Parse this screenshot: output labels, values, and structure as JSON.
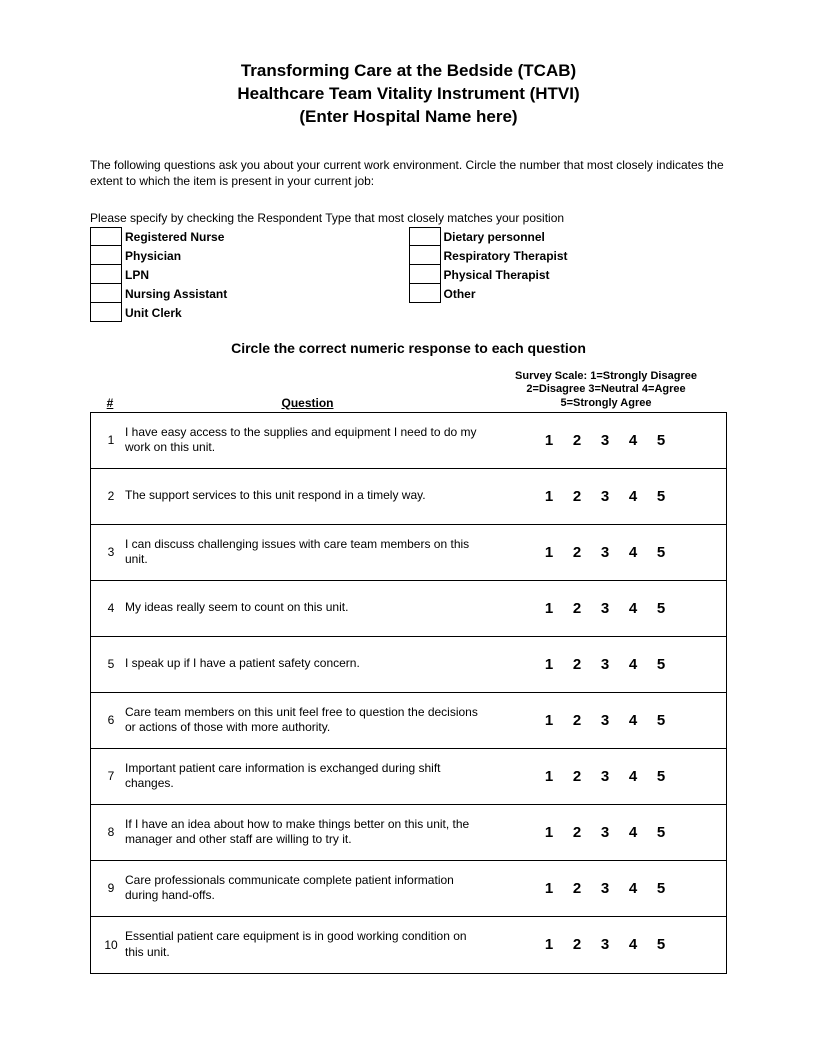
{
  "header": {
    "line1": "Transforming Care at the Bedside (TCAB)",
    "line2": "Healthcare Team Vitality Instrument (HTVI)",
    "line3": "(Enter Hospital Name here)"
  },
  "intro": "The following questions ask you about your current work environment.  Circle the number that most closely indicates the extent to which the item is present in your current job:",
  "respondent_instruction": "Please specify by checking the Respondent Type that most closely matches your position",
  "respondent_types_col1": [
    "Registered Nurse",
    "Physician",
    "LPN",
    "Nursing Assistant",
    "Unit Clerk"
  ],
  "respondent_types_col2": [
    "Dietary personnel",
    "Respiratory Therapist",
    "Physical Therapist",
    "Other"
  ],
  "circle_instruction": "Circle the correct numeric response to each question",
  "table_header": {
    "num": "#",
    "question": "Question",
    "scale_line1": "Survey Scale: 1=Strongly Disagree",
    "scale_line2": "2=Disagree  3=Neutral  4=Agree",
    "scale_line3": "5=Strongly Agree"
  },
  "scale_values": [
    "1",
    "2",
    "3",
    "4",
    "5"
  ],
  "questions": [
    {
      "num": "1",
      "text": "I have easy access to the supplies and equipment I need to do my work on this unit."
    },
    {
      "num": "2",
      "text": "The support services to this unit respond in a timely way."
    },
    {
      "num": "3",
      "text": "I can discuss challenging issues with care team members on this unit."
    },
    {
      "num": "4",
      "text": "My ideas really seem to count on this unit."
    },
    {
      "num": "5",
      "text": "I speak up if I have a patient safety concern."
    },
    {
      "num": "6",
      "text": "Care team members on this unit feel free to question the decisions or actions of those with more authority."
    },
    {
      "num": "7",
      "text": "Important patient care information is exchanged during shift changes."
    },
    {
      "num": "8",
      "text": "If I have an idea about how to make things better on this unit, the manager and other staff are willing to try it."
    },
    {
      "num": "9",
      "text": "Care professionals communicate complete patient information during hand-offs."
    },
    {
      "num": "10",
      "text": "Essential patient care equipment is in good working condition on this unit."
    }
  ],
  "colors": {
    "text": "#000000",
    "background": "#ffffff",
    "border": "#000000"
  },
  "fonts": {
    "family": "Arial",
    "header_size_pt": 13,
    "body_size_pt": 9,
    "scale_num_size_pt": 11
  }
}
